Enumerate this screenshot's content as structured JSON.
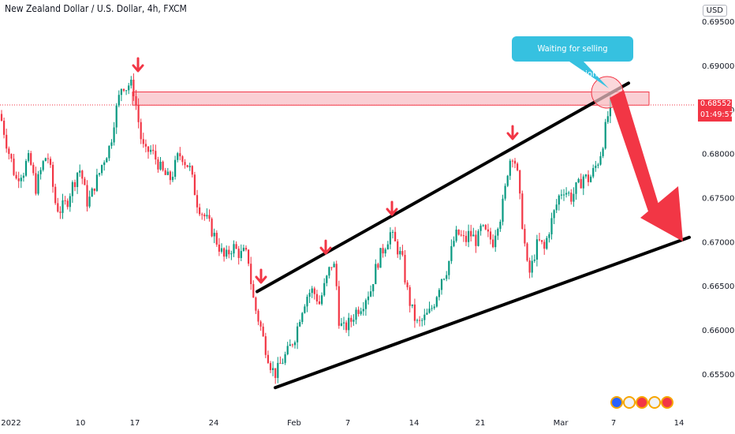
{
  "header": {
    "title": "New Zealand Dollar / U.S. Dollar, 4h, FXCM",
    "currency": "USD"
  },
  "price_marker": {
    "price": "0.68552",
    "countdown": "01:49:57",
    "color": "#f23645"
  },
  "annotation": {
    "text": "Waiting for selling confirmation",
    "color": "#36c1e0"
  },
  "chart_data": {
    "type": "candlestick",
    "y_ticks": [
      "0.69500",
      "0.69000",
      "0.68500",
      "0.68000",
      "0.67500",
      "0.67000",
      "0.66500",
      "0.66000",
      "0.65500"
    ],
    "x_ticks": [
      "2022",
      "10",
      "17",
      "24",
      "Feb",
      "7",
      "14",
      "21",
      "Mar",
      "7",
      "14"
    ],
    "ylim": [
      0.6515,
      0.696
    ],
    "up_color": "#089981",
    "down_color": "#f23645",
    "current_price": 0.68552,
    "close_path": [
      [
        0,
        0.6845
      ],
      [
        4,
        0.683
      ],
      [
        10,
        0.6805
      ],
      [
        15,
        0.679
      ],
      [
        20,
        0.677
      ],
      [
        25,
        0.6778
      ],
      [
        30,
        0.678
      ],
      [
        35,
        0.6795
      ],
      [
        40,
        0.6785
      ],
      [
        45,
        0.676
      ],
      [
        50,
        0.6775
      ],
      [
        55,
        0.679
      ],
      [
        60,
        0.68
      ],
      [
        65,
        0.6775
      ],
      [
        70,
        0.6745
      ],
      [
        75,
        0.6735
      ],
      [
        80,
        0.674
      ],
      [
        85,
        0.6745
      ],
      [
        90,
        0.676
      ],
      [
        95,
        0.677
      ],
      [
        100,
        0.6785
      ],
      [
        105,
        0.677
      ],
      [
        110,
        0.6745
      ],
      [
        115,
        0.675
      ],
      [
        120,
        0.6765
      ],
      [
        125,
        0.6775
      ],
      [
        130,
        0.679
      ],
      [
        135,
        0.68
      ],
      [
        140,
        0.681
      ],
      [
        145,
        0.684
      ],
      [
        150,
        0.686
      ],
      [
        155,
        0.688
      ],
      [
        160,
        0.6875
      ],
      [
        165,
        0.688
      ],
      [
        170,
        0.687
      ],
      [
        175,
        0.684
      ],
      [
        180,
        0.681
      ],
      [
        185,
        0.68
      ],
      [
        190,
        0.6805
      ],
      [
        195,
        0.6798
      ],
      [
        200,
        0.679
      ],
      [
        205,
        0.678
      ],
      [
        210,
        0.6775
      ],
      [
        215,
        0.677
      ],
      [
        220,
        0.678
      ],
      [
        225,
        0.6795
      ],
      [
        230,
        0.68
      ],
      [
        235,
        0.679
      ],
      [
        240,
        0.6785
      ],
      [
        245,
        0.6765
      ],
      [
        250,
        0.6745
      ],
      [
        255,
        0.6735
      ],
      [
        260,
        0.6728
      ],
      [
        265,
        0.672
      ],
      [
        270,
        0.671
      ],
      [
        275,
        0.67
      ],
      [
        280,
        0.669
      ],
      [
        285,
        0.668
      ],
      [
        290,
        0.6688
      ],
      [
        295,
        0.6695
      ],
      [
        300,
        0.669
      ],
      [
        305,
        0.6685
      ],
      [
        310,
        0.6688
      ],
      [
        315,
        0.668
      ],
      [
        320,
        0.664
      ],
      [
        325,
        0.662
      ],
      [
        330,
        0.6605
      ],
      [
        335,
        0.6585
      ],
      [
        340,
        0.657
      ],
      [
        345,
        0.6555
      ],
      [
        350,
        0.655
      ],
      [
        355,
        0.656
      ],
      [
        360,
        0.6568
      ],
      [
        365,
        0.6575
      ],
      [
        370,
        0.6585
      ],
      [
        375,
        0.6595
      ],
      [
        380,
        0.6615
      ],
      [
        385,
        0.663
      ],
      [
        390,
        0.664
      ],
      [
        395,
        0.6645
      ],
      [
        400,
        0.664
      ],
      [
        405,
        0.663
      ],
      [
        410,
        0.6645
      ],
      [
        415,
        0.666
      ],
      [
        420,
        0.6675
      ],
      [
        425,
        0.667
      ],
      [
        430,
        0.661
      ],
      [
        435,
        0.66
      ],
      [
        440,
        0.6605
      ],
      [
        445,
        0.661
      ],
      [
        450,
        0.662
      ],
      [
        455,
        0.6625
      ],
      [
        460,
        0.663
      ],
      [
        465,
        0.664
      ],
      [
        470,
        0.6645
      ],
      [
        475,
        0.6665
      ],
      [
        480,
        0.668
      ],
      [
        485,
        0.669
      ],
      [
        490,
        0.67
      ],
      [
        495,
        0.671
      ],
      [
        500,
        0.67
      ],
      [
        505,
        0.669
      ],
      [
        510,
        0.668
      ],
      [
        515,
        0.665
      ],
      [
        520,
        0.663
      ],
      [
        525,
        0.6615
      ],
      [
        530,
        0.6605
      ],
      [
        535,
        0.661
      ],
      [
        540,
        0.6615
      ],
      [
        545,
        0.662
      ],
      [
        550,
        0.663
      ],
      [
        555,
        0.6645
      ],
      [
        560,
        0.666
      ],
      [
        565,
        0.6665
      ],
      [
        570,
        0.668
      ],
      [
        575,
        0.67
      ],
      [
        580,
        0.671
      ],
      [
        585,
        0.6705
      ],
      [
        590,
        0.67
      ],
      [
        595,
        0.671
      ],
      [
        600,
        0.6705
      ],
      [
        605,
        0.67
      ],
      [
        610,
        0.6715
      ],
      [
        615,
        0.671
      ],
      [
        620,
        0.6705
      ],
      [
        625,
        0.67
      ],
      [
        630,
        0.672
      ],
      [
        635,
        0.673
      ],
      [
        640,
        0.6755
      ],
      [
        645,
        0.679
      ],
      [
        650,
        0.68
      ],
      [
        655,
        0.6785
      ],
      [
        660,
        0.674
      ],
      [
        665,
        0.67
      ],
      [
        670,
        0.666
      ],
      [
        675,
        0.6675
      ],
      [
        680,
        0.6695
      ],
      [
        685,
        0.67
      ],
      [
        690,
        0.669
      ],
      [
        695,
        0.671
      ],
      [
        700,
        0.6725
      ],
      [
        705,
        0.674
      ],
      [
        710,
        0.6755
      ],
      [
        715,
        0.676
      ],
      [
        720,
        0.6755
      ],
      [
        725,
        0.675
      ],
      [
        730,
        0.676
      ],
      [
        735,
        0.6765
      ],
      [
        740,
        0.6775
      ],
      [
        745,
        0.677
      ],
      [
        750,
        0.6775
      ],
      [
        755,
        0.6785
      ],
      [
        760,
        0.6795
      ],
      [
        765,
        0.6815
      ],
      [
        770,
        0.684
      ],
      [
        775,
        0.6858
      ]
    ],
    "resistance_zone": {
      "from": 0.6855,
      "to": 0.687
    },
    "trendlines": [
      {
        "name": "upper",
        "start": [
          326,
          0.66435
        ],
        "end": [
          797,
          0.688
        ]
      },
      {
        "name": "lower",
        "start": [
          349,
          0.65345
        ],
        "end": [
          874,
          0.6705
        ]
      }
    ],
    "arrow_marks": [
      {
        "x": 175,
        "price": 0.6892
      },
      {
        "x": 331,
        "price": 0.6652
      },
      {
        "x": 413,
        "price": 0.6685
      },
      {
        "x": 497,
        "price": 0.6729
      },
      {
        "x": 650,
        "price": 0.6815
      }
    ]
  }
}
